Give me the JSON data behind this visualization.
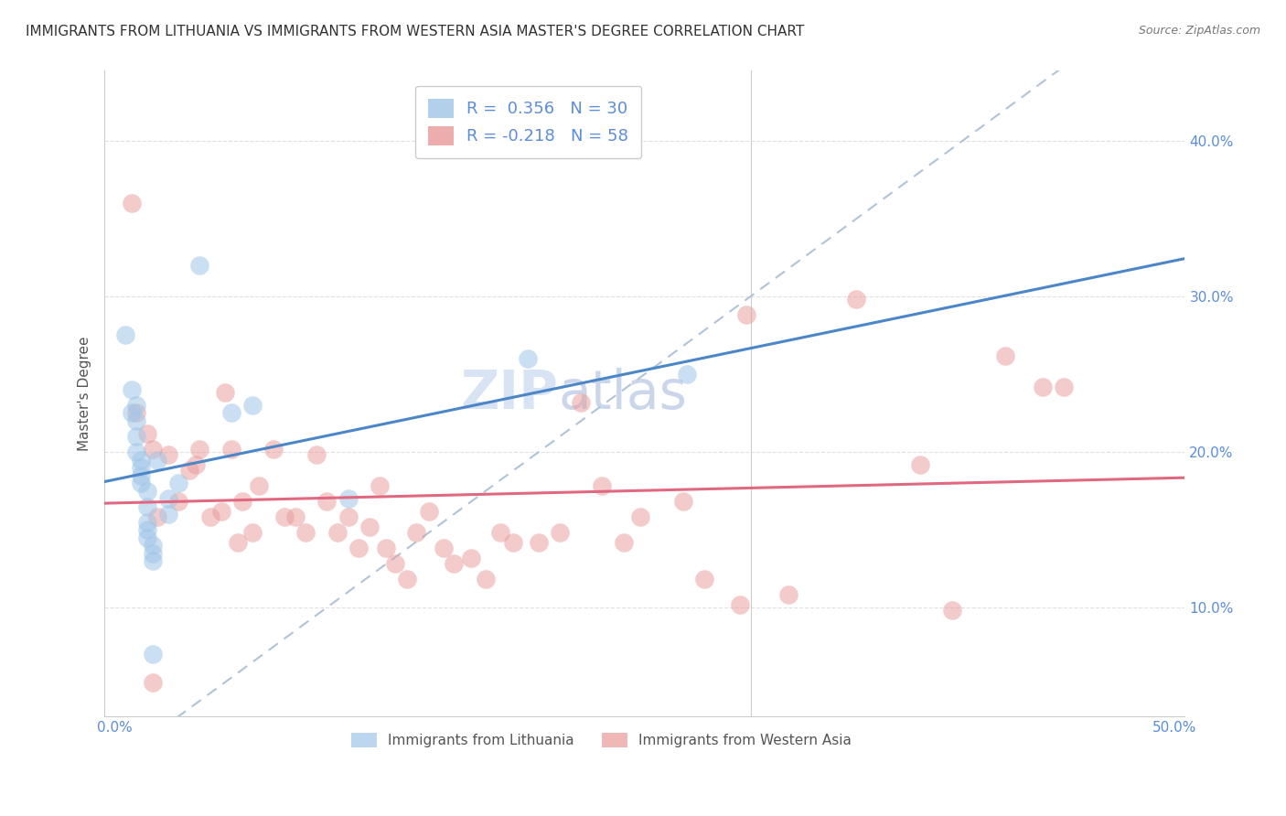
{
  "title": "IMMIGRANTS FROM LITHUANIA VS IMMIGRANTS FROM WESTERN ASIA MASTER'S DEGREE CORRELATION CHART",
  "source": "Source: ZipAtlas.com",
  "ylabel": "Master's Degree",
  "xlabel_ticks": [
    "0.0%",
    "",
    "",
    "",
    "",
    "50.0%"
  ],
  "xlabel_vals": [
    0.0,
    0.1,
    0.2,
    0.3,
    0.4,
    0.5
  ],
  "ylabel_ticks": [
    "10.0%",
    "20.0%",
    "30.0%",
    "40.0%"
  ],
  "ylabel_vals": [
    0.1,
    0.2,
    0.3,
    0.4
  ],
  "xlim": [
    -0.005,
    0.505
  ],
  "ylim": [
    0.03,
    0.445
  ],
  "R_blue": 0.356,
  "N_blue": 30,
  "R_pink": -0.218,
  "N_pink": 58,
  "blue_color": "#9fc5e8",
  "pink_color": "#ea9999",
  "trend_blue": "#4a86c8",
  "trend_pink": "#e06880",
  "dashed_line_color": "#b0c4d8",
  "watermark_zip": "ZIP",
  "watermark_atlas": "atlas",
  "legend_label_blue": "Immigrants from Lithuania",
  "legend_label_pink": "Immigrants from Western Asia",
  "blue_scatter_x": [
    0.005,
    0.008,
    0.008,
    0.01,
    0.01,
    0.01,
    0.01,
    0.012,
    0.012,
    0.012,
    0.012,
    0.015,
    0.015,
    0.015,
    0.015,
    0.015,
    0.018,
    0.018,
    0.018,
    0.018,
    0.02,
    0.025,
    0.04,
    0.055,
    0.065,
    0.11,
    0.195,
    0.27,
    0.025,
    0.03
  ],
  "blue_scatter_y": [
    0.275,
    0.225,
    0.24,
    0.23,
    0.22,
    0.21,
    0.2,
    0.195,
    0.19,
    0.185,
    0.18,
    0.175,
    0.165,
    0.155,
    0.15,
    0.145,
    0.14,
    0.135,
    0.13,
    0.07,
    0.195,
    0.17,
    0.32,
    0.225,
    0.23,
    0.17,
    0.26,
    0.25,
    0.16,
    0.18
  ],
  "pink_scatter_x": [
    0.008,
    0.01,
    0.015,
    0.018,
    0.02,
    0.025,
    0.03,
    0.035,
    0.038,
    0.04,
    0.045,
    0.05,
    0.052,
    0.055,
    0.058,
    0.06,
    0.065,
    0.068,
    0.075,
    0.08,
    0.085,
    0.09,
    0.095,
    0.1,
    0.105,
    0.11,
    0.115,
    0.12,
    0.125,
    0.128,
    0.132,
    0.138,
    0.142,
    0.148,
    0.155,
    0.16,
    0.168,
    0.175,
    0.182,
    0.188,
    0.2,
    0.21,
    0.22,
    0.23,
    0.24,
    0.248,
    0.268,
    0.278,
    0.295,
    0.318,
    0.35,
    0.38,
    0.42,
    0.438,
    0.298,
    0.395,
    0.448,
    0.018
  ],
  "pink_scatter_y": [
    0.36,
    0.225,
    0.212,
    0.202,
    0.158,
    0.198,
    0.168,
    0.188,
    0.192,
    0.202,
    0.158,
    0.162,
    0.238,
    0.202,
    0.142,
    0.168,
    0.148,
    0.178,
    0.202,
    0.158,
    0.158,
    0.148,
    0.198,
    0.168,
    0.148,
    0.158,
    0.138,
    0.152,
    0.178,
    0.138,
    0.128,
    0.118,
    0.148,
    0.162,
    0.138,
    0.128,
    0.132,
    0.118,
    0.148,
    0.142,
    0.142,
    0.148,
    0.232,
    0.178,
    0.142,
    0.158,
    0.168,
    0.118,
    0.102,
    0.108,
    0.298,
    0.192,
    0.262,
    0.242,
    0.288,
    0.098,
    0.242,
    0.052
  ],
  "grid_color": "#dddddd",
  "background_color": "#ffffff",
  "title_fontsize": 11,
  "axis_label_fontsize": 11,
  "tick_fontsize": 11,
  "watermark_fontsize_zip": 42,
  "watermark_fontsize_atlas": 42,
  "watermark_color_zip": "#c8d8ee",
  "watermark_color_atlas": "#aabbdd",
  "legend_fontsize": 13
}
